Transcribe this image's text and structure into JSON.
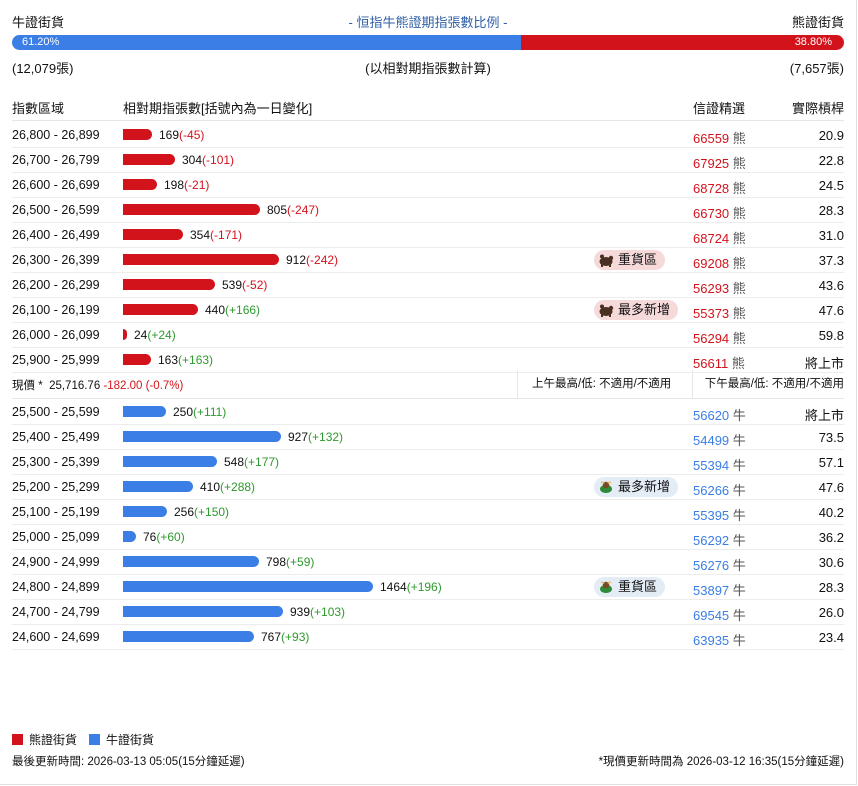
{
  "header": {
    "bull_label": "牛證街貨",
    "title": "- 恒指牛熊證期指張數比例 -",
    "bear_label": "熊證街貨",
    "bull_pct": "61.20%",
    "bear_pct": "38.80%",
    "bull_ratio": 0.612,
    "bull_count": "(12,079張)",
    "note": "(以相對期指張數計算)",
    "bear_count": "(7,657張)"
  },
  "columns": {
    "range": "指數區域",
    "contracts": "相對期指張數[括號內為一日變化]",
    "code": "信證精選",
    "leverage": "實際槓桿"
  },
  "bear_rows": [
    {
      "range": "26,800 - 26,899",
      "count": 169,
      "count_text": "169",
      "change": "(-45)",
      "code": "66559",
      "suffix": "熊",
      "leverage": "20.9",
      "tag": ""
    },
    {
      "range": "26,700 - 26,799",
      "count": 304,
      "count_text": "304",
      "change": "(-101)",
      "code": "67925",
      "suffix": "熊",
      "leverage": "22.8",
      "tag": ""
    },
    {
      "range": "26,600 - 26,699",
      "count": 198,
      "count_text": "198",
      "change": "(-21)",
      "code": "68728",
      "suffix": "熊",
      "leverage": "24.5",
      "tag": ""
    },
    {
      "range": "26,500 - 26,599",
      "count": 805,
      "count_text": "805",
      "change": "(-247)",
      "code": "66730",
      "suffix": "熊",
      "leverage": "28.3",
      "tag": ""
    },
    {
      "range": "26,400 - 26,499",
      "count": 354,
      "count_text": "354",
      "change": "(-171)",
      "code": "68724",
      "suffix": "熊",
      "leverage": "31.0",
      "tag": ""
    },
    {
      "range": "26,300 - 26,399",
      "count": 912,
      "count_text": "912",
      "change": "(-242)",
      "code": "69208",
      "suffix": "熊",
      "leverage": "37.3",
      "tag": "重貨區"
    },
    {
      "range": "26,200 - 26,299",
      "count": 539,
      "count_text": "539",
      "change": "(-52)",
      "code": "56293",
      "suffix": "熊",
      "leverage": "43.6",
      "tag": ""
    },
    {
      "range": "26,100 - 26,199",
      "count": 440,
      "count_text": "440",
      "change": "(+166)",
      "code": "55373",
      "suffix": "熊",
      "leverage": "47.6",
      "tag": "最多新增"
    },
    {
      "range": "26,000 - 26,099",
      "count": 24,
      "count_text": "24",
      "change": "(+24)",
      "code": "56294",
      "suffix": "熊",
      "leverage": "59.8",
      "tag": ""
    },
    {
      "range": "25,900 - 25,999",
      "count": 163,
      "count_text": "163",
      "change": "(+163)",
      "code": "56611",
      "suffix": "熊",
      "leverage": "將上市",
      "tag": ""
    }
  ],
  "price": {
    "label": "現價 *",
    "value": "25,716.76",
    "change": "-182.00 (-0.7%)",
    "am": "上午最高/低: 不適用/不適用",
    "pm": "下午最高/低: 不適用/不適用"
  },
  "bull_rows": [
    {
      "range": "25,500 - 25,599",
      "count": 250,
      "count_text": "250",
      "change": "(+111)",
      "code": "56620",
      "suffix": "牛",
      "leverage": "將上市",
      "tag": ""
    },
    {
      "range": "25,400 - 25,499",
      "count": 927,
      "count_text": "927",
      "change": "(+132)",
      "code": "54499",
      "suffix": "牛",
      "leverage": "73.5",
      "tag": ""
    },
    {
      "range": "25,300 - 25,399",
      "count": 548,
      "count_text": "548",
      "change": "(+177)",
      "code": "55394",
      "suffix": "牛",
      "leverage": "57.1",
      "tag": ""
    },
    {
      "range": "25,200 - 25,299",
      "count": 410,
      "count_text": "410",
      "change": "(+288)",
      "code": "56266",
      "suffix": "牛",
      "leverage": "47.6",
      "tag": "最多新增"
    },
    {
      "range": "25,100 - 25,199",
      "count": 256,
      "count_text": "256",
      "change": "(+150)",
      "code": "55395",
      "suffix": "牛",
      "leverage": "40.2",
      "tag": ""
    },
    {
      "range": "25,000 - 25,099",
      "count": 76,
      "count_text": "76",
      "change": "(+60)",
      "code": "56292",
      "suffix": "牛",
      "leverage": "36.2",
      "tag": ""
    },
    {
      "range": "24,900 - 24,999",
      "count": 798,
      "count_text": "798",
      "change": "(+59)",
      "code": "56276",
      "suffix": "牛",
      "leverage": "30.6",
      "tag": ""
    },
    {
      "range": "24,800 - 24,899",
      "count": 1464,
      "count_text": "1464",
      "change": "(+196)",
      "code": "53897",
      "suffix": "牛",
      "leverage": "28.3",
      "tag": "重貨區"
    },
    {
      "range": "24,700 - 24,799",
      "count": 939,
      "count_text": "939",
      "change": "(+103)",
      "code": "69545",
      "suffix": "牛",
      "leverage": "26.0",
      "tag": ""
    },
    {
      "range": "24,600 - 24,699",
      "count": 767,
      "count_text": "767",
      "change": "(+93)",
      "code": "63935",
      "suffix": "牛",
      "leverage": "23.4",
      "tag": ""
    }
  ],
  "legend": {
    "bear": "熊證街貨",
    "bull": "牛證街貨",
    "bear_color": "#d3131c",
    "bull_color": "#3a7ee6"
  },
  "footer": {
    "updated": "最後更新時間: 2026-03-13 05:05(15分鐘延遲)",
    "price_updated": "*現價更新時間為 2026-03-12 16:35(15分鐘延遲)"
  }
}
